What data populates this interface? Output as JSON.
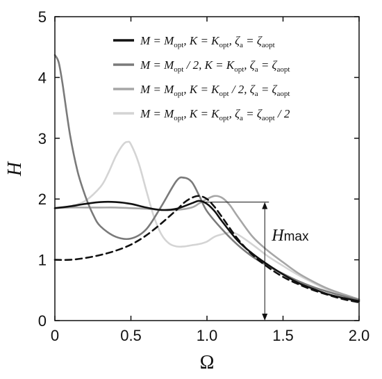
{
  "chart_data": {
    "type": "line",
    "title": "",
    "xlabel": "Ω",
    "ylabel": "H",
    "xlim": [
      0,
      2.0
    ],
    "ylim": [
      0,
      5
    ],
    "xticks": [
      0,
      0.5,
      1.0,
      1.5,
      2.0
    ],
    "xtick_labels": [
      "0",
      "0.5",
      "1.0",
      "1.5",
      "2.0"
    ],
    "yticks": [
      0,
      1,
      2,
      3,
      4,
      5
    ],
    "ytick_labels": [
      "0",
      "1",
      "2",
      "3",
      "4",
      "5"
    ],
    "grid": false,
    "legend_position": "top-right",
    "series": [
      {
        "name": "M = M_opt, K = K_opt, ζa = ζaopt",
        "legend": {
          "p1": "M = M",
          "s1": "opt",
          "p2": ",  K = K",
          "s2": "opt",
          "p3": ",  ζ",
          "s3": "a",
          "p4": " = ζ",
          "s4": "aopt",
          "p5": ""
        },
        "color": "#111111",
        "dash": false,
        "x": [
          0,
          0.1,
          0.2,
          0.3,
          0.4,
          0.5,
          0.6,
          0.7,
          0.8,
          0.9,
          0.95,
          1.0,
          1.05,
          1.1,
          1.2,
          1.3,
          1.4,
          1.5,
          1.6,
          1.7,
          1.8,
          1.9,
          2.0
        ],
        "y": [
          1.85,
          1.88,
          1.92,
          1.95,
          1.95,
          1.92,
          1.86,
          1.82,
          1.84,
          1.93,
          1.97,
          1.92,
          1.8,
          1.63,
          1.32,
          1.1,
          0.92,
          0.76,
          0.62,
          0.52,
          0.43,
          0.37,
          0.32
        ]
      },
      {
        "name": "M = M_opt/2, K = K_opt, ζa = ζaopt",
        "legend": {
          "p1": "M = M",
          "s1": "opt",
          "p2": " / 2,  K = K",
          "s2": "opt",
          "p3": ",  ζ",
          "s3": "a",
          "p4": " = ζ",
          "s4": "aopt",
          "p5": ""
        },
        "color": "#7a7a7a",
        "dash": false,
        "x": [
          0,
          0.025,
          0.05,
          0.1,
          0.15,
          0.2,
          0.25,
          0.3,
          0.4,
          0.5,
          0.6,
          0.7,
          0.8,
          0.85,
          0.9,
          0.95,
          1.0,
          1.1,
          1.2,
          1.3,
          1.4,
          1.5,
          1.6,
          1.7,
          1.8,
          1.9,
          2.0
        ],
        "y": [
          4.37,
          4.25,
          3.9,
          3.05,
          2.45,
          2.05,
          1.75,
          1.55,
          1.38,
          1.35,
          1.5,
          1.88,
          2.3,
          2.35,
          2.28,
          2.05,
          1.8,
          1.5,
          1.25,
          1.05,
          0.9,
          0.77,
          0.65,
          0.55,
          0.47,
          0.4,
          0.34
        ]
      },
      {
        "name": "M = M_opt, K = K_opt/2, ζa = ζaopt",
        "legend": {
          "p1": "M = M",
          "s1": "opt",
          "p2": ",  K = K",
          "s2": "opt",
          "p3": " / 2,  ζ",
          "s3": "a",
          "p4": " = ζ",
          "s4": "aopt",
          "p5": ""
        },
        "color": "#a6a6a6",
        "dash": false,
        "x": [
          0,
          0.1,
          0.2,
          0.3,
          0.4,
          0.5,
          0.6,
          0.7,
          0.8,
          0.9,
          0.95,
          1.0,
          1.05,
          1.1,
          1.15,
          1.2,
          1.3,
          1.4,
          1.5,
          1.6,
          1.7,
          1.8,
          1.9,
          2.0
        ],
        "y": [
          1.85,
          1.86,
          1.86,
          1.86,
          1.86,
          1.85,
          1.84,
          1.82,
          1.82,
          1.86,
          1.93,
          2.0,
          2.05,
          2.02,
          1.9,
          1.72,
          1.38,
          1.15,
          0.96,
          0.78,
          0.64,
          0.52,
          0.43,
          0.35
        ]
      },
      {
        "name": "M = M_opt, K = K_opt, ζa = ζaopt/2",
        "legend": {
          "p1": "M = M",
          "s1": "opt",
          "p2": ",  K = K",
          "s2": "opt",
          "p3": ",  ζ",
          "s3": "a",
          "p4": " = ζ",
          "s4": "aopt",
          "p5": " / 2"
        },
        "color": "#d4d4d4",
        "dash": false,
        "x": [
          0,
          0.1,
          0.2,
          0.3,
          0.35,
          0.4,
          0.45,
          0.48,
          0.5,
          0.55,
          0.6,
          0.65,
          0.7,
          0.75,
          0.8,
          0.85,
          0.9,
          0.95,
          1.0,
          1.05,
          1.1,
          1.15,
          1.2,
          1.3,
          1.4,
          1.5,
          1.6,
          1.7,
          1.8,
          1.9,
          2.0
        ],
        "y": [
          1.85,
          1.88,
          1.97,
          2.2,
          2.42,
          2.7,
          2.9,
          2.94,
          2.9,
          2.6,
          2.15,
          1.72,
          1.42,
          1.27,
          1.22,
          1.22,
          1.24,
          1.26,
          1.3,
          1.38,
          1.42,
          1.45,
          1.42,
          1.25,
          1.06,
          0.9,
          0.75,
          0.62,
          0.5,
          0.42,
          0.35
        ]
      },
      {
        "name": "",
        "color": "#111111",
        "dash": true,
        "x": [
          0,
          0.1,
          0.2,
          0.3,
          0.4,
          0.5,
          0.6,
          0.7,
          0.8,
          0.85,
          0.9,
          0.95,
          1.0,
          1.05,
          1.1,
          1.2,
          1.3,
          1.4,
          1.5,
          1.6,
          1.7,
          1.8,
          1.9,
          2.0
        ],
        "y": [
          1.0,
          1.0,
          1.03,
          1.08,
          1.15,
          1.25,
          1.4,
          1.6,
          1.82,
          1.94,
          2.02,
          2.05,
          2.0,
          1.87,
          1.7,
          1.35,
          1.08,
          0.88,
          0.72,
          0.6,
          0.5,
          0.42,
          0.35,
          0.3
        ]
      }
    ],
    "annotation": {
      "label_main": "H",
      "label_sub": "max",
      "x": 1.38,
      "y_low": 0,
      "y_high": 1.95,
      "hline_from_x": 0.98
    }
  }
}
